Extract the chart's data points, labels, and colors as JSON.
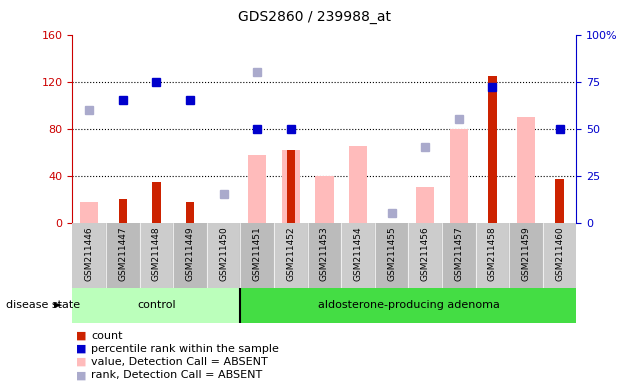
{
  "title": "GDS2860 / 239988_at",
  "samples": [
    "GSM211446",
    "GSM211447",
    "GSM211448",
    "GSM211449",
    "GSM211450",
    "GSM211451",
    "GSM211452",
    "GSM211453",
    "GSM211454",
    "GSM211455",
    "GSM211456",
    "GSM211457",
    "GSM211458",
    "GSM211459",
    "GSM211460"
  ],
  "count": [
    null,
    20,
    35,
    18,
    null,
    null,
    62,
    null,
    null,
    null,
    null,
    null,
    125,
    null,
    37
  ],
  "percentile_rank": [
    null,
    65,
    75,
    65,
    null,
    50,
    50,
    null,
    null,
    null,
    null,
    null,
    72,
    null,
    50
  ],
  "value_absent": [
    18,
    null,
    null,
    null,
    null,
    58,
    62,
    40,
    65,
    null,
    30,
    80,
    null,
    90,
    null
  ],
  "rank_absent": [
    60,
    null,
    null,
    null,
    15,
    80,
    null,
    null,
    null,
    5,
    40,
    55,
    null,
    null,
    null
  ],
  "n_control": 5,
  "n_total": 15,
  "ylim_left": [
    0,
    160
  ],
  "ylim_right": [
    0,
    100
  ],
  "yticks_left": [
    0,
    40,
    80,
    120,
    160
  ],
  "ytick_labels_left": [
    "0",
    "40",
    "80",
    "120",
    "160"
  ],
  "yticks_right": [
    0,
    25,
    50,
    75,
    100
  ],
  "ytick_labels_right": [
    "0",
    "25",
    "50",
    "75",
    "100%"
  ],
  "left_axis_color": "#cc0000",
  "right_axis_color": "#0000cc",
  "count_color": "#cc2200",
  "value_absent_color": "#ffbbbb",
  "rank_color": "#0000cc",
  "rank_absent_color": "#aaaacc",
  "control_color": "#bbffbb",
  "adenoma_color": "#44dd44",
  "xticklabel_bg": "#cccccc",
  "plot_bg": "#ffffff"
}
